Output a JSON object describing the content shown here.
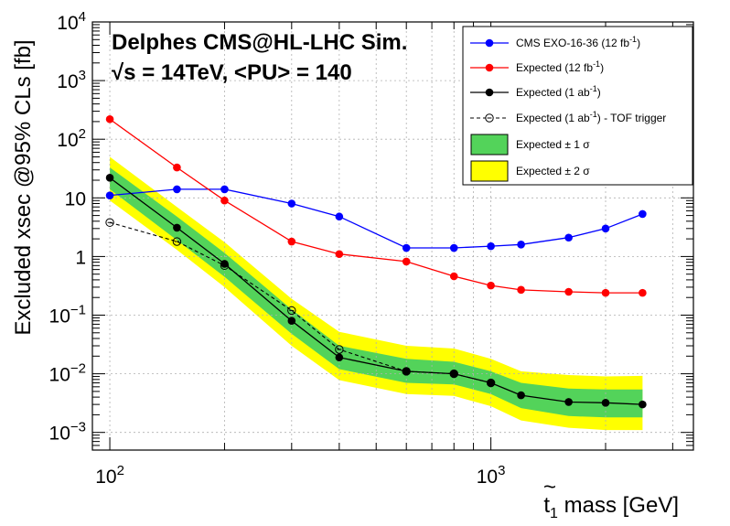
{
  "chart_data": {
    "type": "line",
    "x_scale": "log",
    "y_scale": "log",
    "xlim": [
      90,
      3400
    ],
    "ylim": [
      0.0005,
      10000
    ],
    "grid": true,
    "legend_position": "top-right",
    "xlabel": {
      "prefix": "t",
      "sub": "1",
      "suffix": " mass [GeV]"
    },
    "ylabel": "Excluded xsec @95% CLs [fb]",
    "annotation_line1": "Delphes CMS@HL-LHC Sim.",
    "annotation_line2": "√s = 14TeV, <PU> = 140",
    "x_tick_labels": [
      {
        "value": 100,
        "base": "10",
        "exp": "2"
      },
      {
        "value": 1000,
        "base": "10",
        "exp": "3"
      }
    ],
    "y_tick_labels": [
      {
        "value": 10000,
        "base": "10",
        "exp": "4"
      },
      {
        "value": 1000,
        "base": "10",
        "exp": "3"
      },
      {
        "value": 100,
        "base": "10",
        "exp": "2"
      },
      {
        "value": 10,
        "base": "10",
        "exp": ""
      },
      {
        "value": 1,
        "base": "1",
        "exp": ""
      },
      {
        "value": 0.1,
        "base": "10",
        "exp": "−1"
      },
      {
        "value": 0.01,
        "base": "10",
        "exp": "−2"
      },
      {
        "value": 0.001,
        "base": "10",
        "exp": "−3"
      }
    ],
    "series": [
      {
        "name": "CMS EXO-16-36 (12 fb-1)",
        "legend_base": "CMS EXO-16-36 (12 fb",
        "legend_sup": "-1",
        "legend_tail": ")",
        "color": "#0000ff",
        "style": "solid",
        "marker": "filled",
        "x": [
          100,
          150,
          200,
          300,
          400,
          600,
          800,
          1000,
          1200,
          1600,
          2000,
          2500
        ],
        "y": [
          11,
          14,
          14,
          8,
          4.8,
          1.4,
          1.4,
          1.5,
          1.6,
          2.1,
          3.0,
          5.3
        ]
      },
      {
        "name": "Expected (12 fb-1)",
        "legend_base": "Expected (12 fb",
        "legend_sup": "-1",
        "legend_tail": ")",
        "color": "#ff0000",
        "style": "solid",
        "marker": "filled",
        "x": [
          100,
          150,
          200,
          300,
          400,
          600,
          800,
          1000,
          1200,
          1600,
          2000,
          2500
        ],
        "y": [
          220,
          33,
          9,
          1.8,
          1.1,
          0.82,
          0.46,
          0.32,
          0.27,
          0.25,
          0.24,
          0.24
        ]
      },
      {
        "name": "Expected (1 ab-1)",
        "legend_base": "Expected (1 ab",
        "legend_sup": "-1",
        "legend_tail": ")",
        "color": "#000000",
        "style": "solid",
        "marker": "filled",
        "x": [
          100,
          150,
          200,
          300,
          400,
          600,
          800,
          1000,
          1200,
          1600,
          2000,
          2500
        ],
        "y": [
          22,
          3.1,
          0.75,
          0.08,
          0.019,
          0.011,
          0.01,
          0.007,
          0.0043,
          0.0033,
          0.0032,
          0.003
        ]
      },
      {
        "name": "Expected (1 ab-1) - TOF trigger",
        "legend_base": "Expected (1 ab",
        "legend_sup": "-1",
        "legend_tail": ") - TOF trigger",
        "color": "#000000",
        "style": "dashed",
        "marker": "open",
        "x": [
          100,
          150,
          200,
          300,
          400,
          600,
          800,
          1000
        ],
        "y": [
          3.8,
          1.8,
          0.7,
          0.12,
          0.026,
          0.011,
          0.01,
          0.007
        ]
      }
    ],
    "bands": [
      {
        "name": "Expected ± 1 σ",
        "legend_text": "Expected ± 1 σ",
        "color": "#53d35a",
        "x": [
          100,
          150,
          200,
          300,
          400,
          600,
          800,
          1000,
          1200,
          1600,
          2000,
          2500
        ],
        "lower": [
          14,
          1.9,
          0.45,
          0.048,
          0.012,
          0.007,
          0.0066,
          0.0045,
          0.0026,
          0.0019,
          0.0018,
          0.0018
        ],
        "upper": [
          33,
          4.8,
          1.15,
          0.125,
          0.03,
          0.018,
          0.016,
          0.011,
          0.007,
          0.0056,
          0.0054,
          0.0054
        ]
      },
      {
        "name": "Expected ± 2 σ",
        "legend_text": "Expected ± 2 σ",
        "color": "#ffff00",
        "x": [
          100,
          150,
          200,
          300,
          400,
          600,
          800,
          1000,
          1200,
          1600,
          2000,
          2500
        ],
        "lower": [
          9,
          1.3,
          0.3,
          0.03,
          0.0078,
          0.0045,
          0.0042,
          0.0028,
          0.0016,
          0.0012,
          0.0011,
          0.0011
        ],
        "upper": [
          50,
          7,
          1.75,
          0.19,
          0.052,
          0.03,
          0.027,
          0.018,
          0.011,
          0.0095,
          0.009,
          0.0092
        ]
      }
    ]
  }
}
